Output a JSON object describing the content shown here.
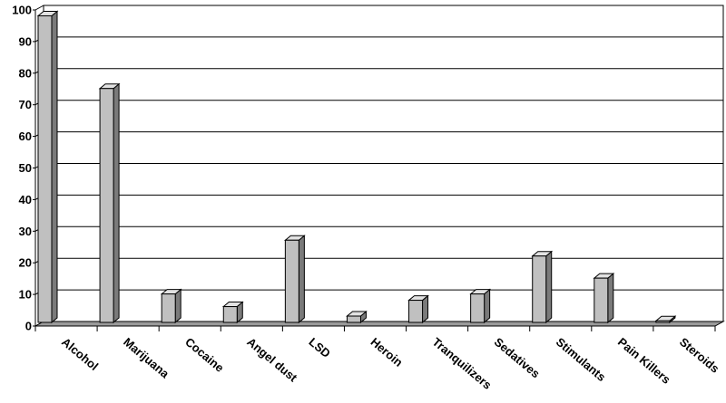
{
  "chart_data": {
    "type": "bar",
    "categories": [
      "Alcohol",
      "Marijuana",
      "Cocaine",
      "Angel dust",
      "LSD",
      "Heroin",
      "Tranquilizers",
      "Sedatives",
      "Stimulants",
      "Pain Killers",
      "Steroids"
    ],
    "series": [
      {
        "values": [
          97,
          74,
          9,
          5,
          26,
          2,
          7,
          9,
          21,
          14,
          0.5
        ]
      }
    ],
    "ylim": [
      0,
      100
    ],
    "yticks": [
      0,
      10,
      20,
      30,
      40,
      50,
      60,
      70,
      80,
      90,
      100
    ],
    "grid": true,
    "legend": "none",
    "colors": {
      "bar_front": "#c0c0c0",
      "bar_side": "#7a7a7a",
      "bar_top": "#e2e2e2",
      "floor": "#9a9a9a",
      "wall": "#ffffff"
    }
  }
}
